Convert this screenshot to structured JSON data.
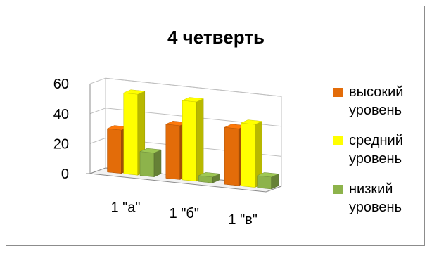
{
  "chart_data": {
    "type": "bar",
    "title": "4 четверть",
    "categories": [
      "1 \"а\"",
      "1 \"б\"",
      "1 \"в\""
    ],
    "series": [
      {
        "name": "высокий уровень",
        "color": "#e36c09",
        "values": [
          29,
          36,
          38
        ]
      },
      {
        "name": "средний уровень",
        "color": "#ffff00",
        "values": [
          54,
          53,
          42
        ]
      },
      {
        "name": "низкий уровень",
        "color": "#8db34b",
        "values": [
          16,
          4,
          8
        ]
      }
    ],
    "ylim": [
      0,
      60
    ],
    "yticks": [
      0,
      20,
      40,
      60
    ],
    "legend_position": "right",
    "grid": true,
    "style": "3d-clustered-column"
  }
}
